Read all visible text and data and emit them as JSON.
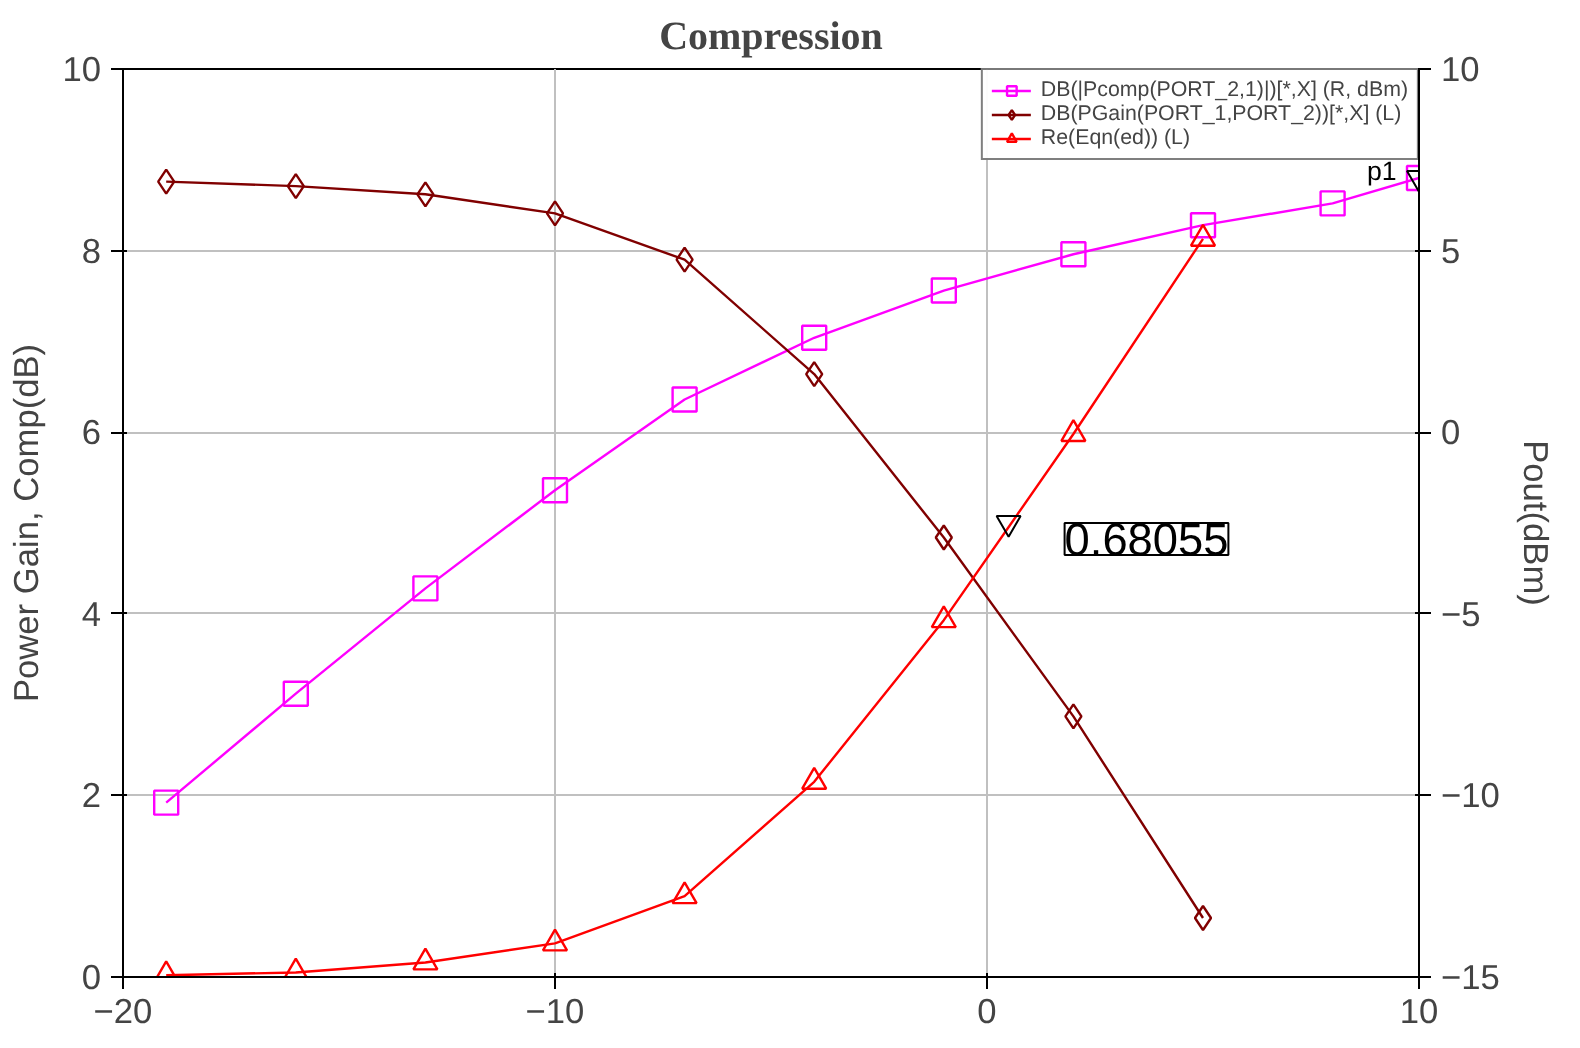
{
  "chart_data": {
    "type": "line",
    "title": "Compression",
    "ylabel": "Power Gain, Comp(dB)",
    "y2label": "Pout(dBm)",
    "x": [
      -19,
      -16,
      -13,
      -10,
      -7,
      -4,
      -1,
      2,
      5
    ],
    "series": [
      {
        "name": "DB(|Pcomp(PORT_2,1)|)[*,X] (R, dBm)",
        "color": "#ff00ff",
        "axis": "y2",
        "marker": "square",
        "x": [
          -19,
          -16,
          -13,
          -10,
          -7,
          -4,
          -1,
          2,
          5,
          8,
          10
        ],
        "values": [
          -10.2,
          -7.2,
          -4.3,
          -1.6,
          0.9,
          2.6,
          3.9,
          4.9,
          5.7,
          6.3,
          7.0
        ]
      },
      {
        "name": "DB(PGain(PORT_1,PORT_2))[*,X] (L)",
        "color": "#800000",
        "marker": "diamond",
        "values": [
          8.76,
          8.71,
          8.62,
          8.41,
          7.9,
          6.64,
          4.84,
          2.87,
          0.65
        ]
      },
      {
        "name": "Re(Eqn(ed)) (L)",
        "color": "#ff0000",
        "marker": "triangle",
        "values": [
          0.02,
          0.05,
          0.16,
          0.37,
          0.89,
          2.15,
          3.93,
          5.98,
          8.13
        ]
      }
    ],
    "annotations": [
      {
        "text": "0.68055",
        "x": 0.5,
        "y": 5.0
      },
      {
        "text": "p1",
        "x": 10,
        "y": 8.8
      }
    ],
    "xlim": [
      -20,
      10
    ],
    "xticks": [
      -20,
      -10,
      0,
      10
    ],
    "ylim": [
      0,
      10
    ],
    "yticks": [
      0,
      2,
      4,
      6,
      8,
      10
    ],
    "y2lim": [
      -15,
      10
    ],
    "y2ticks": [
      -15,
      -10,
      -5,
      0,
      5,
      10
    ],
    "grid": true,
    "legend": "top right"
  }
}
